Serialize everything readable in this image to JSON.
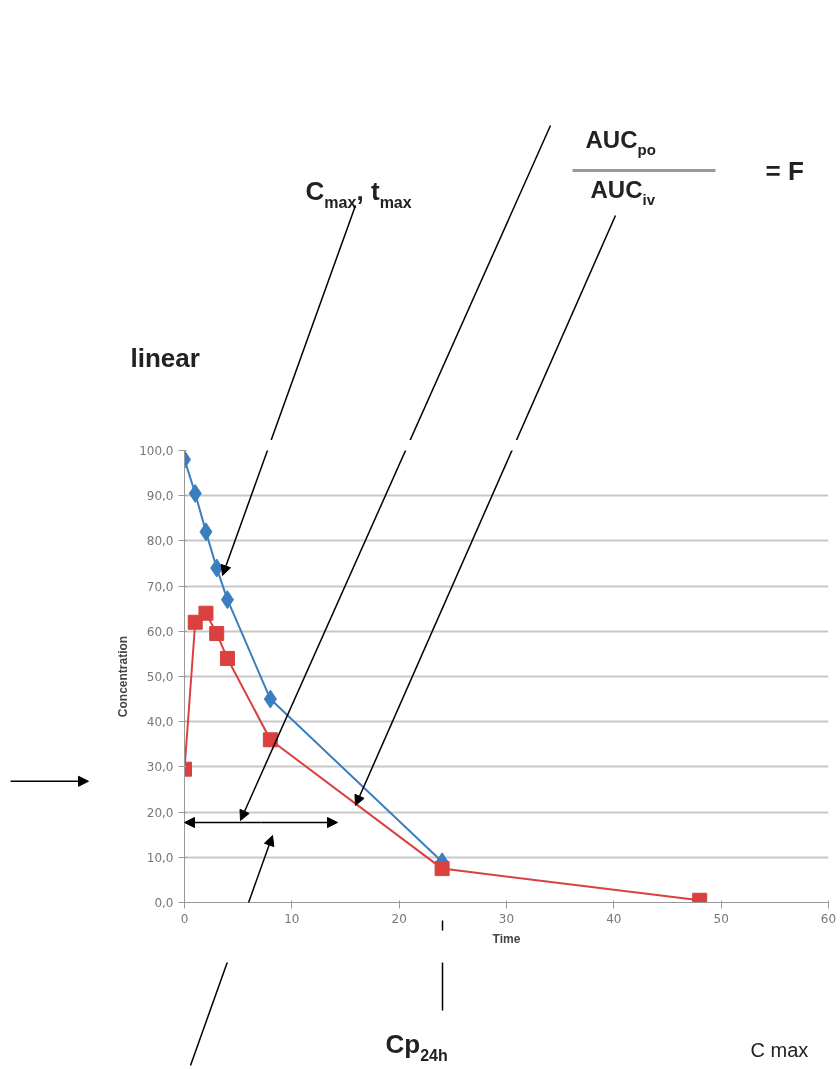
{
  "chart_data": {
    "type": "line",
    "xlabel": "Time",
    "ylabel": "Concentration",
    "xlim": [
      0,
      60
    ],
    "ylim": [
      0,
      100
    ],
    "xticks": [
      0,
      10,
      20,
      30,
      40,
      50,
      60
    ],
    "yticks": [
      {
        "value": 0,
        "label": "0,0"
      },
      {
        "value": 10,
        "label": "10,0"
      },
      {
        "value": 20,
        "label": "20,0"
      },
      {
        "value": 30,
        "label": "30,0"
      },
      {
        "value": 40,
        "label": "40,0"
      },
      {
        "value": 50,
        "label": "50,0"
      },
      {
        "value": 60,
        "label": "60,0"
      },
      {
        "value": 70,
        "label": "70,0"
      },
      {
        "value": 80,
        "label": "80,0"
      },
      {
        "value": 90,
        "label": "90,0"
      },
      {
        "value": 100,
        "label": "100,0"
      }
    ],
    "grid": "y",
    "series": [
      {
        "color": "#3a7ebf",
        "marker": "diamond",
        "x": [
          0,
          1,
          2,
          3,
          4,
          8,
          24
        ],
        "values": [
          98,
          90.5,
          82,
          74,
          67,
          45,
          9
        ]
      },
      {
        "color": "#d9403f",
        "marker": "square",
        "x": [
          0,
          1,
          2,
          3,
          4,
          8,
          24,
          48
        ],
        "values": [
          29.5,
          62,
          64,
          59.5,
          54,
          36,
          7.5,
          0.5
        ]
      }
    ],
    "annotations": [
      "C$_{max}$, t$_{max}$",
      "AUC$_{po}$",
      "AUC$_{iv}$",
      "= F",
      "linear",
      "Cp$_{24h}$",
      "C max"
    ]
  }
}
